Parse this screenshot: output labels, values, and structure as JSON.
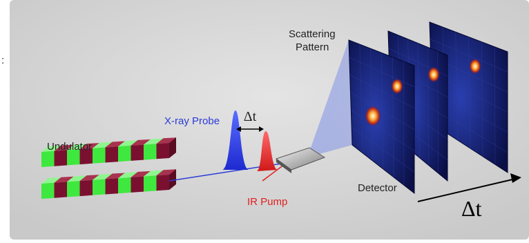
{
  "labels": {
    "fragment": ":",
    "scattering_pattern": [
      "Scattering",
      "Pattern"
    ],
    "xray_probe": "X-ray Probe",
    "delay_small": "Δt",
    "undulator": "Undulator",
    "detector": "Detector",
    "ir_pump": "IR Pump",
    "delay_large": "Δt"
  }
}
